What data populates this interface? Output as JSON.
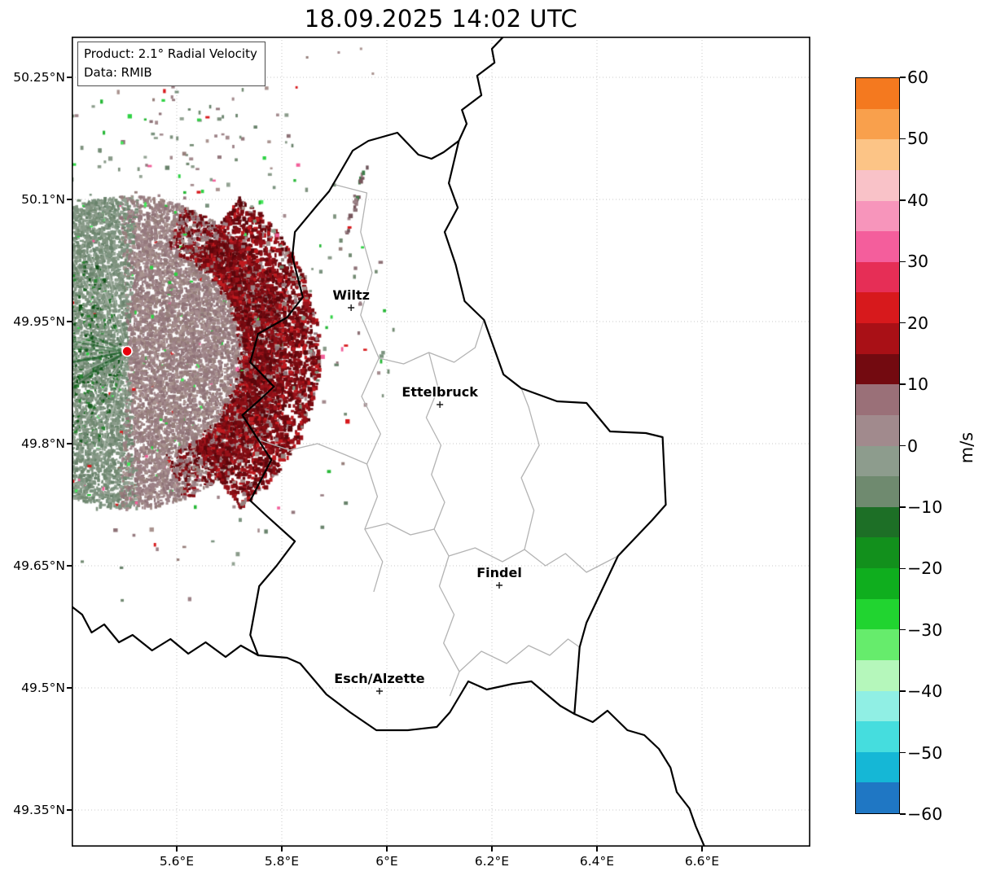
{
  "title": "18.09.2025 14:02 UTC",
  "info_box": {
    "line1": "Product: 2.1° Radial Velocity",
    "line2": "Data: RMIB"
  },
  "axes": {
    "lon_ticks": [
      {
        "value": 5.6,
        "label": "5.6°E"
      },
      {
        "value": 5.8,
        "label": "5.8°E"
      },
      {
        "value": 6.0,
        "label": "6°E"
      },
      {
        "value": 6.2,
        "label": "6.2°E"
      },
      {
        "value": 6.4,
        "label": "6.4°E"
      },
      {
        "value": 6.6,
        "label": "6.6°E"
      }
    ],
    "lat_ticks": [
      {
        "value": 50.25,
        "label": "50.25°N"
      },
      {
        "value": 50.1,
        "label": "50.1°N"
      },
      {
        "value": 49.95,
        "label": "49.95°N"
      },
      {
        "value": 49.8,
        "label": "49.8°N"
      },
      {
        "value": 49.65,
        "label": "49.65°N"
      },
      {
        "value": 49.5,
        "label": "49.5°N"
      },
      {
        "value": 49.35,
        "label": "49.35°N"
      }
    ]
  },
  "cities": [
    {
      "name": "Wiltz",
      "lon": 5.932,
      "lat": 49.967
    },
    {
      "name": "Ettelbruck",
      "lon": 6.101,
      "lat": 49.848
    },
    {
      "name": "Findel",
      "lon": 6.214,
      "lat": 49.626
    },
    {
      "name": "Esch/Alzette",
      "lon": 5.986,
      "lat": 49.496
    }
  ],
  "radar": {
    "site_lon": 5.5056,
    "site_lat": 49.9135,
    "marker_color": "#e8000b"
  },
  "colorbar": {
    "unit": "m/s",
    "max": 60,
    "min": -60,
    "step": 5,
    "ticks": [
      {
        "value": 60,
        "label": "60"
      },
      {
        "value": 50,
        "label": "50"
      },
      {
        "value": 40,
        "label": "40"
      },
      {
        "value": 30,
        "label": "30"
      },
      {
        "value": 20,
        "label": "20"
      },
      {
        "value": 10,
        "label": "10"
      },
      {
        "value": 0,
        "label": "0"
      },
      {
        "value": -10,
        "label": "−10"
      },
      {
        "value": -20,
        "label": "−20"
      },
      {
        "value": -30,
        "label": "−30"
      },
      {
        "value": -40,
        "label": "−40"
      },
      {
        "value": -50,
        "label": "−50"
      },
      {
        "value": -60,
        "label": "−60"
      }
    ],
    "colors_top_to_bottom": [
      "#f4791f",
      "#f9a04c",
      "#fcc486",
      "#f9c2c8",
      "#f795bb",
      "#f45e9c",
      "#e62e56",
      "#d7191c",
      "#a91016",
      "#730a10",
      "#9a7078",
      "#a18a8d",
      "#8d9c8d",
      "#6f8a6f",
      "#1d6f26",
      "#12901c",
      "#0fae1e",
      "#21d430",
      "#66ec6c",
      "#b5f7bb",
      "#90efe4",
      "#45ddde",
      "#15b7d6",
      "#1f77c4"
    ]
  },
  "map": {
    "national_border": [
      [
        6.137,
        50.172
      ],
      [
        6.108,
        50.158
      ],
      [
        6.085,
        50.15
      ],
      [
        6.06,
        50.155
      ],
      [
        6.02,
        50.182
      ],
      [
        5.965,
        50.172
      ],
      [
        5.935,
        50.16
      ],
      [
        5.89,
        50.11
      ],
      [
        5.87,
        50.095
      ],
      [
        5.825,
        50.06
      ],
      [
        5.82,
        50.03
      ],
      [
        5.84,
        49.98
      ],
      [
        5.81,
        49.955
      ],
      [
        5.755,
        49.935
      ],
      [
        5.74,
        49.9
      ],
      [
        5.785,
        49.87
      ],
      [
        5.76,
        49.855
      ],
      [
        5.725,
        49.835
      ],
      [
        5.755,
        49.805
      ],
      [
        5.78,
        49.78
      ],
      [
        5.74,
        49.73
      ],
      [
        5.77,
        49.712
      ],
      [
        5.825,
        49.68
      ],
      [
        5.79,
        49.65
      ],
      [
        5.757,
        49.625
      ],
      [
        5.74,
        49.565
      ],
      [
        5.755,
        49.54
      ],
      [
        5.81,
        49.537
      ],
      [
        5.835,
        49.53
      ],
      [
        5.885,
        49.492
      ],
      [
        5.93,
        49.47
      ],
      [
        5.98,
        49.448
      ],
      [
        6.04,
        49.448
      ],
      [
        6.095,
        49.452
      ],
      [
        6.12,
        49.47
      ],
      [
        6.155,
        49.508
      ],
      [
        6.19,
        49.498
      ],
      [
        6.24,
        49.505
      ],
      [
        6.275,
        49.508
      ],
      [
        6.33,
        49.478
      ],
      [
        6.357,
        49.468
      ],
      [
        6.367,
        49.55
      ],
      [
        6.38,
        49.58
      ],
      [
        6.44,
        49.662
      ],
      [
        6.505,
        49.706
      ],
      [
        6.531,
        49.725
      ],
      [
        6.525,
        49.808
      ],
      [
        6.493,
        49.813
      ],
      [
        6.425,
        49.815
      ],
      [
        6.38,
        49.85
      ],
      [
        6.324,
        49.852
      ],
      [
        6.256,
        49.868
      ],
      [
        6.222,
        49.885
      ],
      [
        6.185,
        49.952
      ],
      [
        6.148,
        49.975
      ],
      [
        6.131,
        50.02
      ],
      [
        6.11,
        50.06
      ],
      [
        6.135,
        50.09
      ],
      [
        6.118,
        50.12
      ],
      [
        6.137,
        50.172
      ]
    ],
    "border_extensions": [
      [
        [
          6.137,
          50.172
        ],
        [
          6.152,
          50.193
        ],
        [
          6.143,
          50.21
        ],
        [
          6.18,
          50.228
        ],
        [
          6.172,
          50.252
        ],
        [
          6.205,
          50.268
        ],
        [
          6.2,
          50.285
        ],
        [
          6.225,
          50.302
        ]
      ],
      [
        [
          6.357,
          49.468
        ],
        [
          6.392,
          49.458
        ],
        [
          6.42,
          49.472
        ],
        [
          6.458,
          49.448
        ],
        [
          6.49,
          49.442
        ],
        [
          6.518,
          49.425
        ],
        [
          6.54,
          49.402
        ],
        [
          6.552,
          49.372
        ],
        [
          6.576,
          49.352
        ],
        [
          6.588,
          49.33
        ],
        [
          6.608,
          49.3
        ]
      ],
      [
        [
          5.755,
          49.54
        ],
        [
          5.722,
          49.552
        ],
        [
          5.693,
          49.538
        ],
        [
          5.655,
          49.556
        ],
        [
          5.622,
          49.542
        ],
        [
          5.588,
          49.56
        ],
        [
          5.553,
          49.546
        ],
        [
          5.516,
          49.565
        ],
        [
          5.49,
          49.556
        ],
        [
          5.462,
          49.578
        ],
        [
          5.438,
          49.568
        ],
        [
          5.42,
          49.59
        ],
        [
          5.4,
          49.6
        ]
      ]
    ],
    "district_borders": [
      [
        [
          5.902,
          50.118
        ],
        [
          5.962,
          50.108
        ],
        [
          5.95,
          50.06
        ],
        [
          5.972,
          50.01
        ],
        [
          5.95,
          49.958
        ],
        [
          5.985,
          49.905
        ],
        [
          5.952,
          49.858
        ],
        [
          5.988,
          49.812
        ],
        [
          5.962,
          49.775
        ],
        [
          5.982,
          49.735
        ],
        [
          5.958,
          49.695
        ],
        [
          5.992,
          49.655
        ],
        [
          5.975,
          49.618
        ]
      ],
      [
        [
          5.755,
          49.805
        ],
        [
          5.815,
          49.792
        ],
        [
          5.868,
          49.8
        ],
        [
          5.922,
          49.786
        ],
        [
          5.962,
          49.775
        ]
      ],
      [
        [
          5.985,
          49.905
        ],
        [
          6.032,
          49.898
        ],
        [
          6.08,
          49.912
        ],
        [
          6.128,
          49.9
        ],
        [
          6.168,
          49.918
        ],
        [
          6.185,
          49.952
        ]
      ],
      [
        [
          6.08,
          49.912
        ],
        [
          6.098,
          49.868
        ],
        [
          6.075,
          49.832
        ],
        [
          6.103,
          49.798
        ],
        [
          6.085,
          49.762
        ],
        [
          6.11,
          49.728
        ],
        [
          6.09,
          49.695
        ],
        [
          6.118,
          49.662
        ],
        [
          6.1,
          49.625
        ],
        [
          6.128,
          49.59
        ],
        [
          6.108,
          49.555
        ],
        [
          6.138,
          49.52
        ],
        [
          6.12,
          49.49
        ]
      ],
      [
        [
          5.958,
          49.695
        ],
        [
          6.002,
          49.702
        ],
        [
          6.045,
          49.688
        ],
        [
          6.09,
          49.695
        ]
      ],
      [
        [
          6.118,
          49.662
        ],
        [
          6.168,
          49.672
        ],
        [
          6.22,
          49.655
        ],
        [
          6.262,
          49.67
        ],
        [
          6.302,
          49.65
        ],
        [
          6.34,
          49.665
        ],
        [
          6.38,
          49.642
        ],
        [
          6.44,
          49.662
        ]
      ],
      [
        [
          6.262,
          49.67
        ],
        [
          6.28,
          49.718
        ],
        [
          6.256,
          49.758
        ],
        [
          6.29,
          49.798
        ],
        [
          6.27,
          49.845
        ],
        [
          6.256,
          49.868
        ]
      ],
      [
        [
          6.138,
          49.52
        ],
        [
          6.18,
          49.545
        ],
        [
          6.228,
          49.53
        ],
        [
          6.27,
          49.552
        ],
        [
          6.31,
          49.54
        ],
        [
          6.345,
          49.56
        ],
        [
          6.367,
          49.55
        ]
      ]
    ]
  },
  "chart_data": {
    "type": "heatmap",
    "title": "18.09.2025 14:02 UTC",
    "product": "2.1° Radial Velocity",
    "data_source": "RMIB",
    "unit": "m/s",
    "x_axis": {
      "label_format": "°E",
      "ticks": [
        5.6,
        5.8,
        6.0,
        6.2,
        6.4,
        6.6
      ],
      "range": [
        5.4,
        6.806
      ]
    },
    "y_axis": {
      "label_format": "°N",
      "ticks": [
        50.25,
        50.1,
        49.95,
        49.8,
        49.65,
        49.5,
        49.35
      ],
      "range": [
        49.305,
        50.3
      ]
    },
    "colorbar": {
      "range": [
        -60,
        60
      ],
      "ticks": [
        60,
        50,
        40,
        30,
        20,
        10,
        0,
        -10,
        -20,
        -30,
        -40,
        -50,
        -60
      ],
      "unit": "m/s",
      "position": "right"
    },
    "grid": true,
    "radar_site": {
      "lon": 5.5056,
      "lat": 49.9135
    },
    "annotations": [
      "Wiltz",
      "Ettelbruck",
      "Findel",
      "Esch/Alzette"
    ],
    "velocity_field_summary": {
      "shape": "circular field centered on radar site at approx 5.51E / 49.91N, radius approx 0.3 deg",
      "west_half": "grey-green, approx -5 to 0 m/s (toward radar), with dark green streaks approx -10 to -15 m/s near site",
      "east_half": "grey-mauve, approx 0 to +10 m/s (away from radar)",
      "east_edge": "dense dark-red clump approx +10 to +20 m/s around 5.75-5.85E near 49.85-49.97N",
      "noise": "scattered speckles of bright green, red and pink across and beyond the field"
    }
  }
}
